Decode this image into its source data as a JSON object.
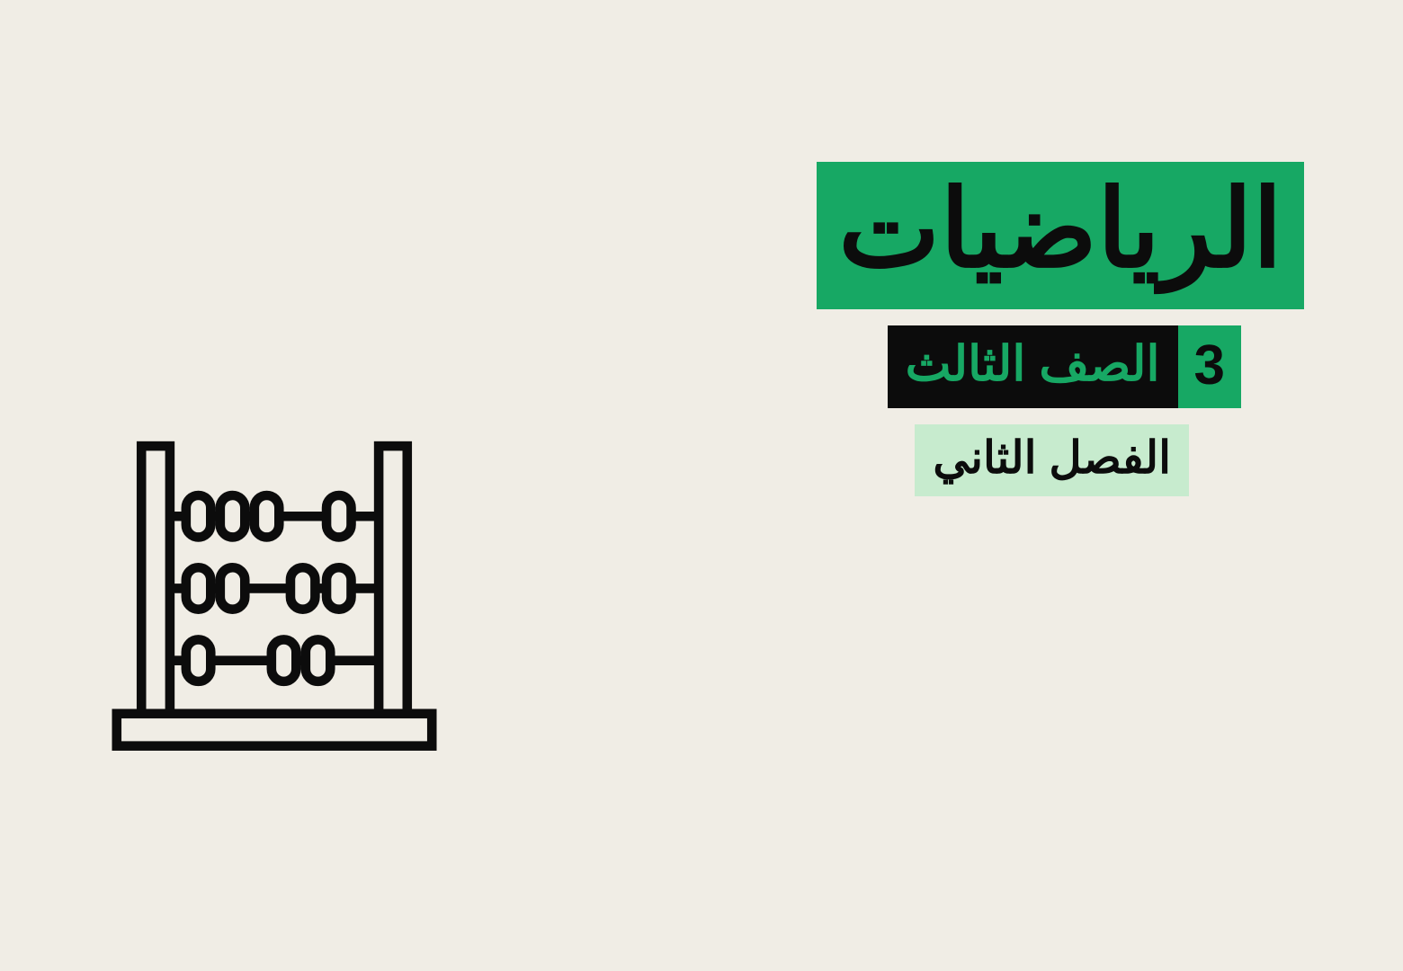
{
  "colors": {
    "background": "#f0ede5",
    "green": "#17a864",
    "green_light": "#c7ebce",
    "black": "#0c0c0c",
    "icon_stroke": "#0c0c0c"
  },
  "title": "الرياضيات",
  "grade": {
    "number": "3",
    "label": "الصف الثالث"
  },
  "semester": "الفصل الثاني",
  "icon": {
    "name": "abacus-icon",
    "stroke_width": 10,
    "rows": [
      {
        "beads_x": [
          100,
          136,
          172,
          248
        ]
      },
      {
        "beads_x": [
          100,
          136,
          210,
          248
        ]
      },
      {
        "beads_x": [
          100,
          190,
          226
        ]
      }
    ]
  }
}
